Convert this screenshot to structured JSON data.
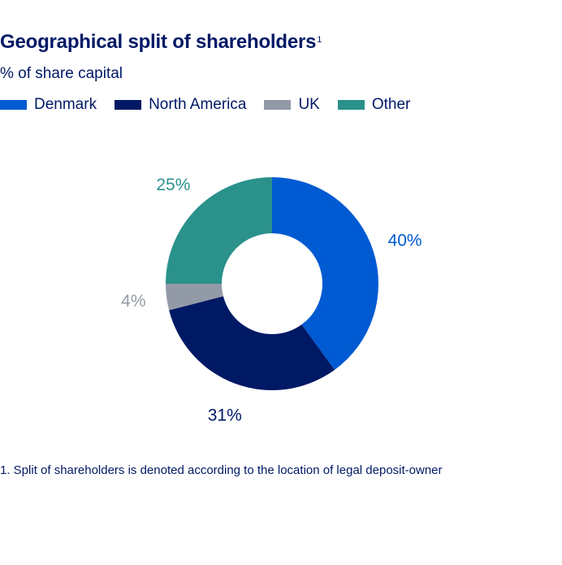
{
  "header": {
    "title": "Geographical split of shareholders",
    "title_sup": "1",
    "subtitle": "% of share capital"
  },
  "chart_data": {
    "type": "pie",
    "donut": true,
    "title": "Geographical split of shareholders",
    "subtitle": "% of share capital",
    "categories": [
      "Denmark",
      "North America",
      "UK",
      "Other"
    ],
    "values": [
      40,
      31,
      4,
      25
    ],
    "labels": [
      "40%",
      "31%",
      "4%",
      "25%"
    ],
    "colors": [
      "#005ad2",
      "#001965",
      "#939aa7",
      "#2a918b"
    ],
    "legend_position": "top-left"
  },
  "footnote": "1. Split of shareholders is denoted according to the location of legal deposit-owner"
}
